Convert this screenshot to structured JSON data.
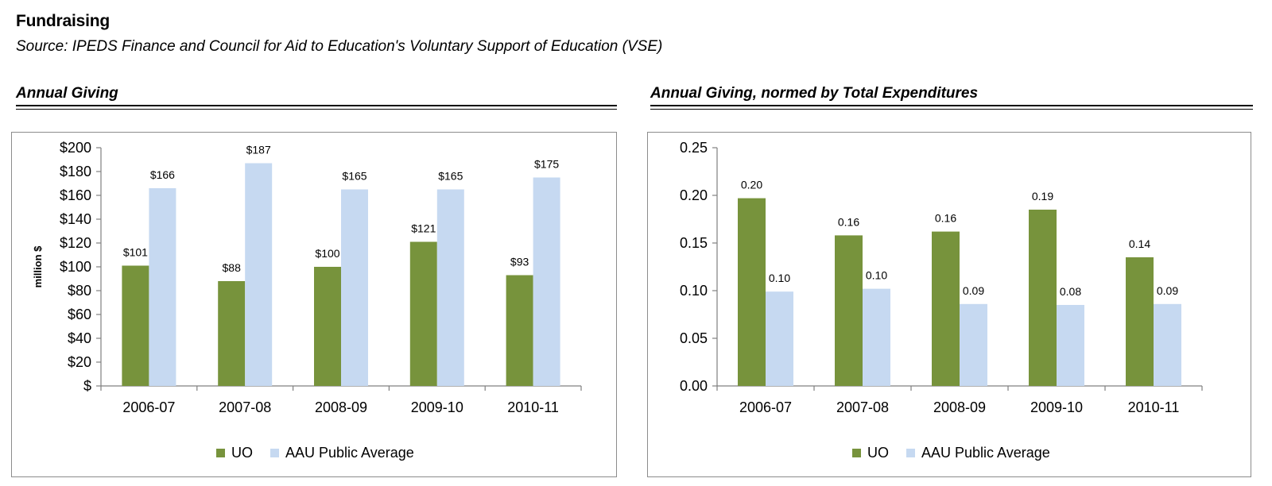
{
  "header": {
    "title": "Fundraising",
    "subtitle": "Source: IPEDS Finance and Council for Aid to Education's Voluntary Support of Education (VSE)"
  },
  "colors": {
    "uo": "#77933c",
    "aau": "#c6d9f1",
    "axis": "#808080",
    "rule": "#000000"
  },
  "chart_data": [
    {
      "type": "bar",
      "title": "Annual Giving",
      "ylabel": "million $",
      "xlabel": "",
      "categories": [
        "2006-07",
        "2007-08",
        "2008-09",
        "2009-10",
        "2010-11"
      ],
      "ylim": [
        0,
        200
      ],
      "yticks": [
        0,
        20,
        40,
        60,
        80,
        100,
        120,
        140,
        160,
        180,
        200
      ],
      "ytick_labels": [
        "$",
        "$20",
        "$40",
        "$60",
        "$80",
        "$100",
        "$120",
        "$140",
        "$160",
        "$180",
        "$200"
      ],
      "series": [
        {
          "name": "UO",
          "values": [
            101,
            88,
            100,
            121,
            93
          ],
          "labels": [
            "$101",
            "$88",
            "$100",
            "$121",
            "$93"
          ]
        },
        {
          "name": "AAU Public Average",
          "values": [
            166,
            187,
            165,
            165,
            175
          ],
          "labels": [
            "$166",
            "$187",
            "$165",
            "$165",
            "$175"
          ]
        }
      ],
      "grid": false,
      "legend": "bottom"
    },
    {
      "type": "bar",
      "title": "Annual Giving, normed by Total Expenditures",
      "ylabel": "",
      "xlabel": "",
      "categories": [
        "2006-07",
        "2007-08",
        "2008-09",
        "2009-10",
        "2010-11"
      ],
      "ylim": [
        0,
        0.25
      ],
      "yticks": [
        0,
        0.05,
        0.1,
        0.15,
        0.2,
        0.25
      ],
      "ytick_labels": [
        "0.00",
        "0.05",
        "0.10",
        "0.15",
        "0.20",
        "0.25"
      ],
      "series": [
        {
          "name": "UO",
          "values": [
            0.197,
            0.158,
            0.162,
            0.185,
            0.135
          ],
          "labels": [
            "0.20",
            "0.16",
            "0.16",
            "0.19",
            "0.14"
          ]
        },
        {
          "name": "AAU Public Average",
          "values": [
            0.099,
            0.102,
            0.086,
            0.085,
            0.086
          ],
          "labels": [
            "0.10",
            "0.10",
            "0.09",
            "0.08",
            "0.09"
          ]
        }
      ],
      "grid": false,
      "legend": "bottom"
    }
  ]
}
